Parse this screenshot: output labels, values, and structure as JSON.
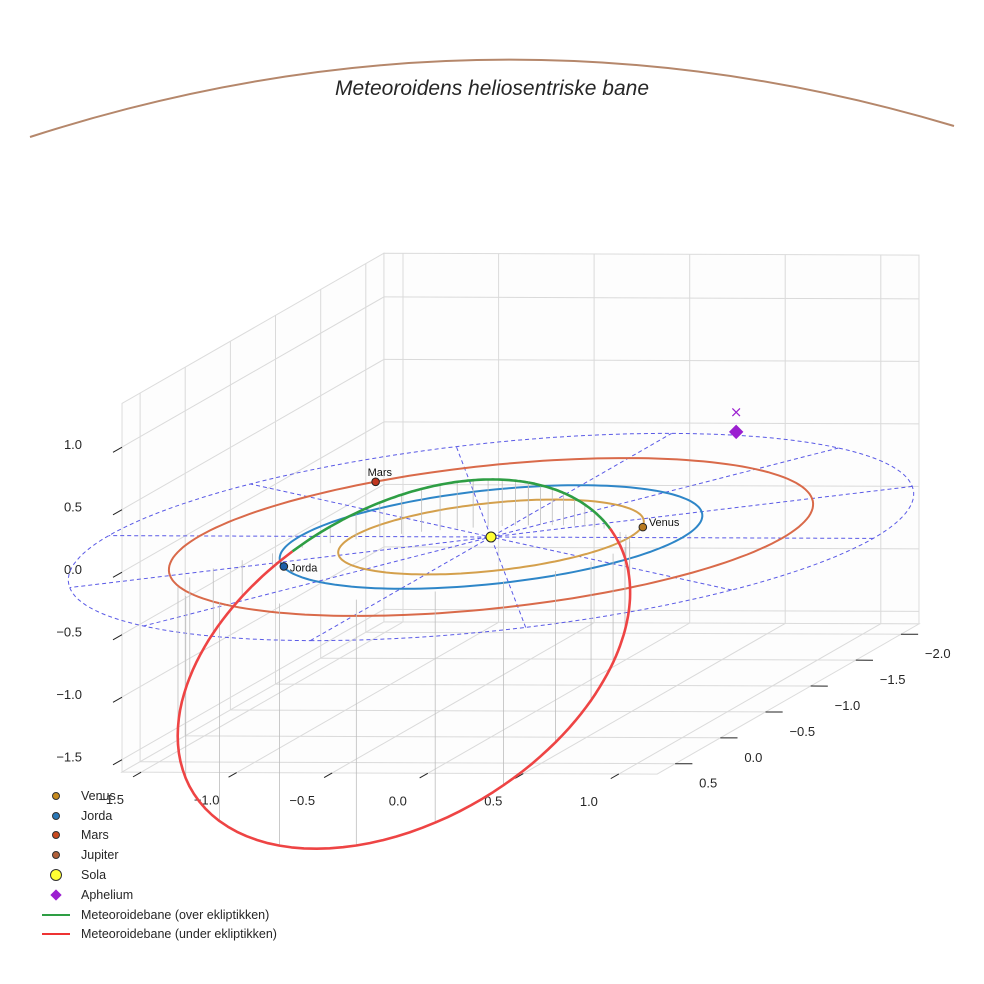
{
  "chart_data": {
    "type": "3d-line",
    "title": "Meteoroidens heliosentriske bane",
    "x_ticks": [
      "−2.0",
      "−1.5",
      "−1.0",
      "−0.5",
      "0.0",
      "0.5"
    ],
    "y_ticks": [
      "−1.5",
      "−1.0",
      "−0.5",
      "0.0",
      "0.5",
      "1.0"
    ],
    "z_ticks": [
      "1.0",
      "0.5",
      "0.0",
      "−0.5",
      "−1.0",
      "−1.5"
    ],
    "xlim": [
      -2.2,
      0.7
    ],
    "ylim": [
      -1.6,
      1.2
    ],
    "zlim": [
      -1.6,
      1.35
    ],
    "orbits": [
      {
        "name": "Venus",
        "radius": 0.723,
        "color": "#d4a04c"
      },
      {
        "name": "Jorda",
        "radius": 1.0,
        "color": "#2e86c8"
      },
      {
        "name": "Mars",
        "radius": 1.524,
        "color": "#d96a4a"
      },
      {
        "name": "Jupiter",
        "radius": 5.2,
        "color": "#b5876b"
      }
    ],
    "ecliptic_grid": {
      "radius": 2.0,
      "spokes": 12,
      "color": "#5a5ae6"
    },
    "planets": [
      {
        "name": "Venus",
        "label": "Venus",
        "x": -0.2,
        "y": 0.7,
        "z": 0,
        "color": "#b87a1f"
      },
      {
        "name": "Jorda",
        "label": "Jorda",
        "x": 0.58,
        "y": -0.81,
        "z": 0,
        "color": "#1f5fa8"
      },
      {
        "name": "Mars",
        "label": "Mars",
        "x": -1.05,
        "y": -1.1,
        "z": 0,
        "color": "#c0361f"
      },
      {
        "name": "Sola",
        "label": "",
        "x": 0,
        "y": 0,
        "z": 0,
        "color": "#ffff33"
      }
    ],
    "meteoroid_orbit": {
      "a": 1.4,
      "e": 0.7,
      "inclination_deg": 60,
      "node_angle_deg": 105,
      "perihelion_arg_deg": 70,
      "above_color": "#2e9e44",
      "below_color": "#ee4444"
    },
    "aphelion": {
      "x": -1.53,
      "y": 0.56,
      "z": 0.21,
      "color": "#9b1fd0"
    },
    "aphelion_projection_marker": "×",
    "legend": [
      {
        "label": "Venus",
        "kind": "dot",
        "color": "#c78a1d"
      },
      {
        "label": "Jorda",
        "kind": "dot",
        "color": "#2a78b8"
      },
      {
        "label": "Mars",
        "kind": "dot",
        "color": "#c84a1f"
      },
      {
        "label": "Jupiter",
        "kind": "dot",
        "color": "#b0603a"
      },
      {
        "label": "Sola",
        "kind": "bigdot",
        "color": "#ffff33"
      },
      {
        "label": "Aphelium",
        "kind": "diamond",
        "color": "#9b1fd0"
      },
      {
        "label": "Meteoroidebane (over ekliptikken)",
        "kind": "line",
        "color": "#2e9e44"
      },
      {
        "label": "Meteoroidebane (under ekliptikken)",
        "kind": "line",
        "color": "#ee3333"
      }
    ]
  }
}
